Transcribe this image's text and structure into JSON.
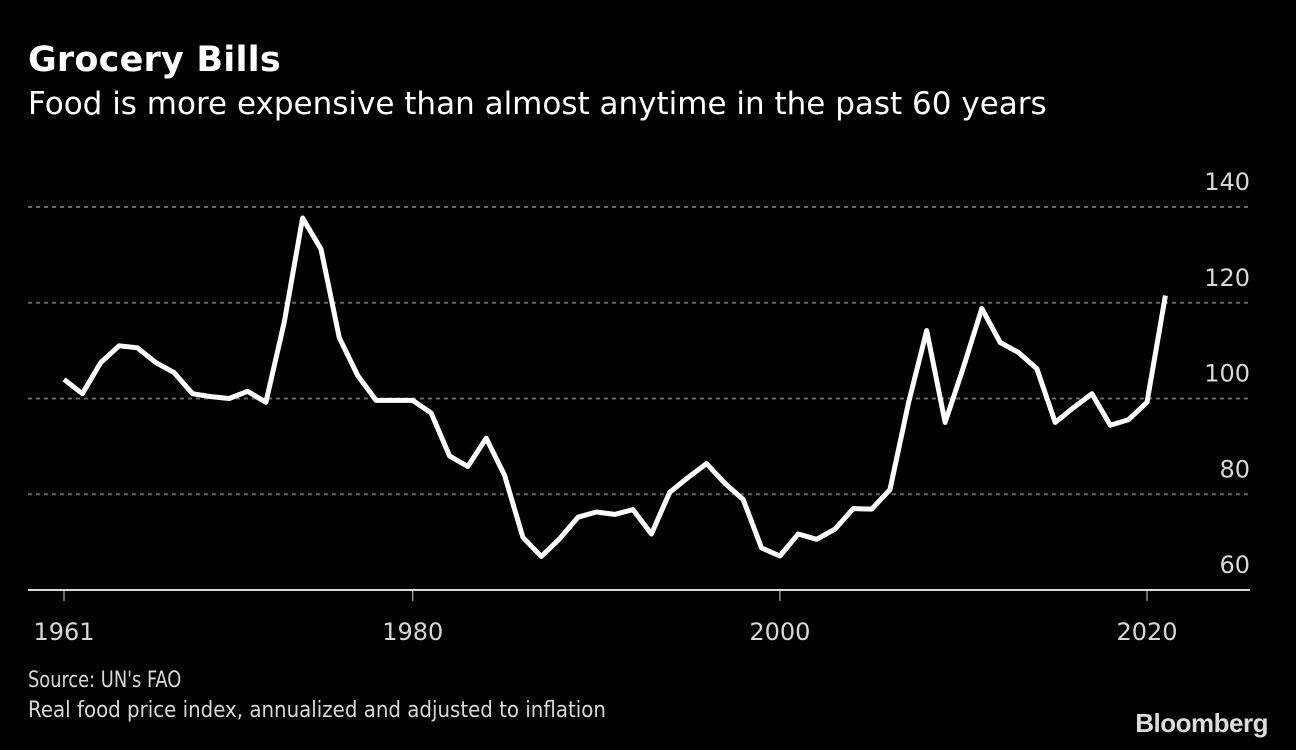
{
  "header": {
    "title": "Grocery Bills",
    "subtitle": "Food is more expensive than almost anytime in the past 60 years"
  },
  "footer": {
    "source": "Source: UN's FAO",
    "note": "Real food price index, annualized and adjusted to inflation",
    "brand": "Bloomberg"
  },
  "colors": {
    "background": "#000000",
    "line": "#ffffff",
    "grid": "#666666",
    "axis": "#d8d8d8",
    "text": "#d8d8d8"
  },
  "chart_data": {
    "type": "line",
    "title": "Grocery Bills",
    "subtitle": "Food is more expensive than almost anytime in the past 60 years",
    "xlabel": "",
    "ylabel": "",
    "xlim": [
      1961,
      2021
    ],
    "ylim": [
      60,
      140
    ],
    "x_ticks": [
      1961,
      1980,
      2000,
      2020
    ],
    "x_tick_labels": [
      "1961",
      "1980",
      "2000",
      "2020"
    ],
    "y_ticks": [
      60,
      80,
      100,
      120,
      140
    ],
    "y_tick_labels": [
      "60",
      "80",
      "100",
      "120",
      "140"
    ],
    "y_axis_side": "right",
    "grid": true,
    "legend": "none",
    "series": [
      {
        "name": "Real food price index",
        "x": [
          1961,
          1962,
          1963,
          1964,
          1965,
          1966,
          1967,
          1968,
          1969,
          1970,
          1971,
          1972,
          1973,
          1974,
          1975,
          1976,
          1977,
          1978,
          1979,
          1980,
          1981,
          1982,
          1983,
          1984,
          1985,
          1986,
          1987,
          1988,
          1989,
          1990,
          1991,
          1992,
          1993,
          1994,
          1995,
          1996,
          1997,
          1998,
          1999,
          2000,
          2001,
          2002,
          2003,
          2004,
          2005,
          2006,
          2007,
          2008,
          2009,
          2010,
          2011,
          2012,
          2013,
          2014,
          2015,
          2016,
          2017,
          2018,
          2019,
          2020,
          2021
        ],
        "values": [
          104,
          101,
          107.5,
          111,
          110.6,
          107.5,
          105.4,
          101,
          100.4,
          100,
          101.5,
          99.2,
          116,
          137.7,
          131.2,
          112.7,
          104.8,
          99.6,
          99.6,
          99.6,
          97,
          88,
          85.8,
          91.7,
          84,
          71,
          67,
          70.7,
          75.2,
          76.3,
          75.8,
          76.8,
          71.7,
          80.4,
          83.5,
          86.4,
          82.3,
          78.9,
          68.8,
          67.1,
          71.7,
          70.6,
          72.7,
          77,
          76.9,
          81,
          99,
          114.2,
          95,
          106.5,
          118.8,
          111.7,
          109.6,
          106.2,
          95,
          98.1,
          101,
          94.4,
          95.6,
          99.2,
          121.5
        ]
      }
    ],
    "source": "Source: UN's FAO",
    "note": "Real food price index, annualized and adjusted to inflation"
  }
}
